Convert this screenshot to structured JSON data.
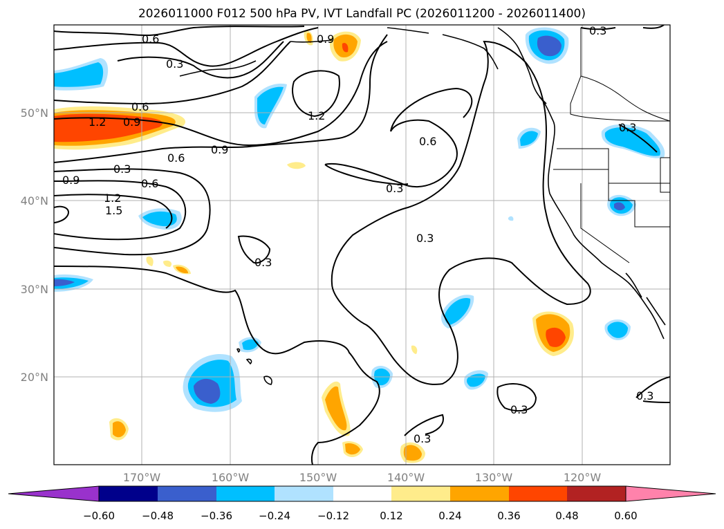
{
  "title": "2026011000 F012 500 hPa PV, IVT Landfall PC (2026011200 - 2026011400)",
  "map": {
    "lat_labels": [
      "50°N",
      "40°N",
      "30°N",
      "20°N"
    ],
    "lon_labels": [
      "170°W",
      "160°W",
      "150°W",
      "140°W",
      "130°W",
      "120°W"
    ],
    "contour_labels": [
      "0.6",
      "0.3",
      "0.9",
      "0.6",
      "1.2",
      "0.9",
      "0.6",
      "0.9",
      "0.3",
      "0.6",
      "0.9",
      "1.2",
      "1.5",
      "1.2",
      "0.6",
      "0.3",
      "0.3",
      "0.3",
      "0.3",
      "0.3",
      "0.3",
      "0.3",
      "0.3"
    ]
  },
  "colorbar": {
    "ticks": [
      "−0.60",
      "−0.48",
      "−0.36",
      "−0.24",
      "−0.12",
      "0.12",
      "0.24",
      "0.36",
      "0.48",
      "0.60"
    ],
    "colors": [
      "#9932cc",
      "#00008b",
      "#3a5fcd",
      "#00bfff",
      "#b0e2ff",
      "#ffffff",
      "#ffec8b",
      "#ffa500",
      "#ff4500",
      "#b22222",
      "#ff82ab"
    ]
  },
  "colors": {
    "land_line": "#000000",
    "grid": "#b0b0b0",
    "tick_label": "#808080"
  }
}
